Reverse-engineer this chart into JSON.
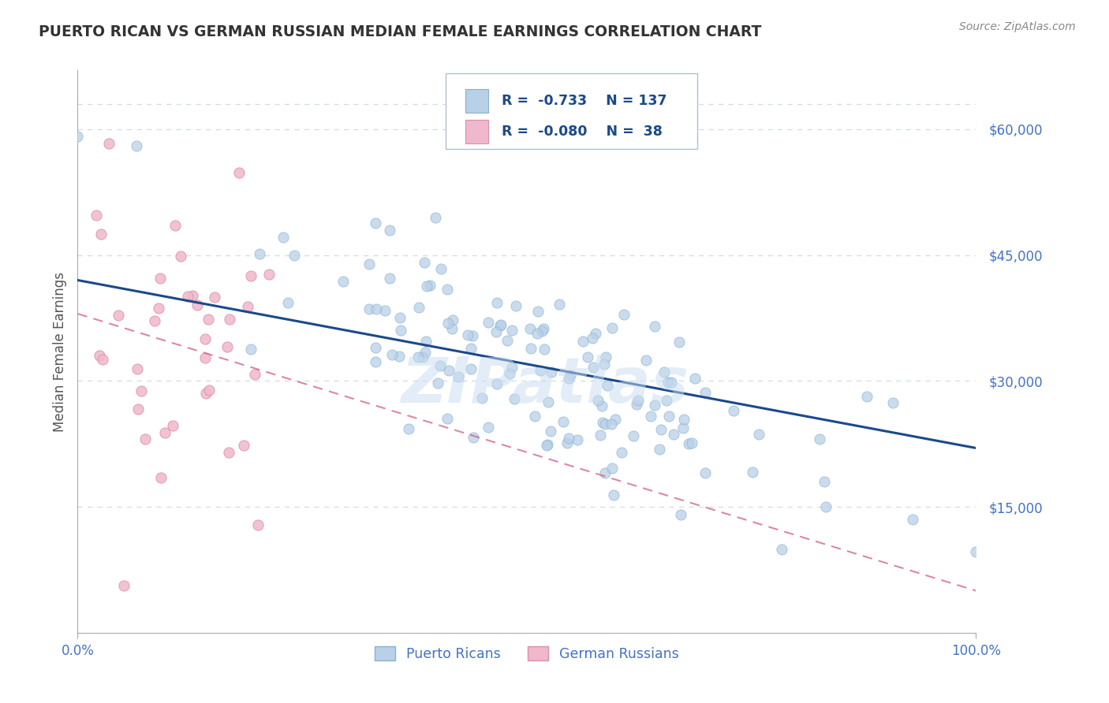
{
  "title": "PUERTO RICAN VS GERMAN RUSSIAN MEDIAN FEMALE EARNINGS CORRELATION CHART",
  "source": "Source: ZipAtlas.com",
  "ylabel": "Median Female Earnings",
  "xlim": [
    0,
    1.0
  ],
  "ylim": [
    0,
    67000
  ],
  "yticks": [
    15000,
    30000,
    45000,
    60000
  ],
  "ytick_labels": [
    "$15,000",
    "$30,000",
    "$45,000",
    "$60,000"
  ],
  "xtick_labels": [
    "0.0%",
    "100.0%"
  ],
  "series1_name": "Puerto Ricans",
  "series1_color": "#b8d0e8",
  "series1_edge": "#8ab0d0",
  "series1_R": -0.733,
  "series1_N": 137,
  "series1_line_color": "#1a4a8a",
  "series2_name": "German Russians",
  "series2_color": "#f0b8cc",
  "series2_edge": "#d890a8",
  "series2_R": -0.08,
  "series2_N": 38,
  "series2_line_color": "#d06080",
  "legend_text_color": "#1a4a8a",
  "watermark": "ZIPatlas",
  "background_color": "#ffffff",
  "title_color": "#333333",
  "tick_color": "#4472c4",
  "grid_color": "#d0dce8",
  "title_fontsize": 13.5,
  "source_fontsize": 10,
  "marker_size": 90
}
